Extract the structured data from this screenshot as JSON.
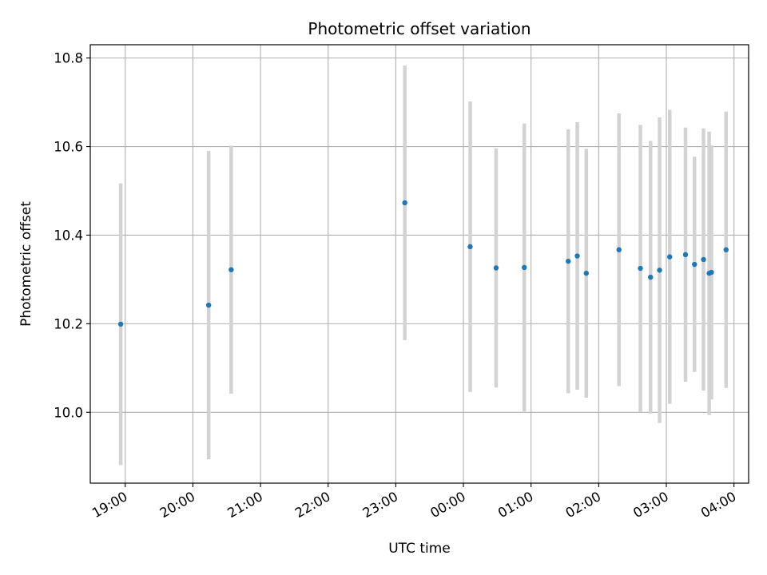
{
  "chart_data": {
    "type": "scatter",
    "title": "Photometric offset variation",
    "xlabel": "UTC time",
    "ylabel": "Photometric offset",
    "x_tick_labels": [
      "19:00",
      "20:00",
      "21:00",
      "22:00",
      "23:00",
      "00:00",
      "01:00",
      "02:00",
      "03:00",
      "04:00"
    ],
    "y_tick_labels": [
      "10.0",
      "10.2",
      "10.4",
      "10.6",
      "10.8"
    ],
    "y_ticks": [
      10.0,
      10.2,
      10.4,
      10.6,
      10.8
    ],
    "xlim": [
      "18:29",
      "04:13"
    ],
    "ylim": [
      9.84,
      10.83
    ],
    "grid": true,
    "point_color": "#1f77b4",
    "errorbar_color": "#d3d3d3",
    "series": [
      {
        "points": [
          {
            "x": "18:56",
            "y": 10.199,
            "err": 0.318
          },
          {
            "x": "20:14",
            "y": 10.242,
            "err": 0.348
          },
          {
            "x": "20:34",
            "y": 10.322,
            "err": 0.28
          },
          {
            "x": "23:08",
            "y": 10.473,
            "err": 0.31
          },
          {
            "x": "00:06",
            "y": 10.374,
            "err": 0.328
          },
          {
            "x": "00:29",
            "y": 10.326,
            "err": 0.27
          },
          {
            "x": "00:54",
            "y": 10.327,
            "err": 0.325
          },
          {
            "x": "01:33",
            "y": 10.341,
            "err": 0.298
          },
          {
            "x": "01:41",
            "y": 10.353,
            "err": 0.302
          },
          {
            "x": "01:49",
            "y": 10.314,
            "err": 0.281
          },
          {
            "x": "02:18",
            "y": 10.367,
            "err": 0.308
          },
          {
            "x": "02:37",
            "y": 10.325,
            "err": 0.324
          },
          {
            "x": "02:46",
            "y": 10.305,
            "err": 0.308
          },
          {
            "x": "02:54",
            "y": 10.321,
            "err": 0.345
          },
          {
            "x": "03:03",
            "y": 10.351,
            "err": 0.332
          },
          {
            "x": "03:17",
            "y": 10.356,
            "err": 0.287
          },
          {
            "x": "03:25",
            "y": 10.334,
            "err": 0.243
          },
          {
            "x": "03:33",
            "y": 10.345,
            "err": 0.296
          },
          {
            "x": "03:38",
            "y": 10.314,
            "err": 0.32
          },
          {
            "x": "03:40",
            "y": 10.316,
            "err": 0.287
          },
          {
            "x": "03:53",
            "y": 10.367,
            "err": 0.312
          }
        ]
      }
    ]
  }
}
